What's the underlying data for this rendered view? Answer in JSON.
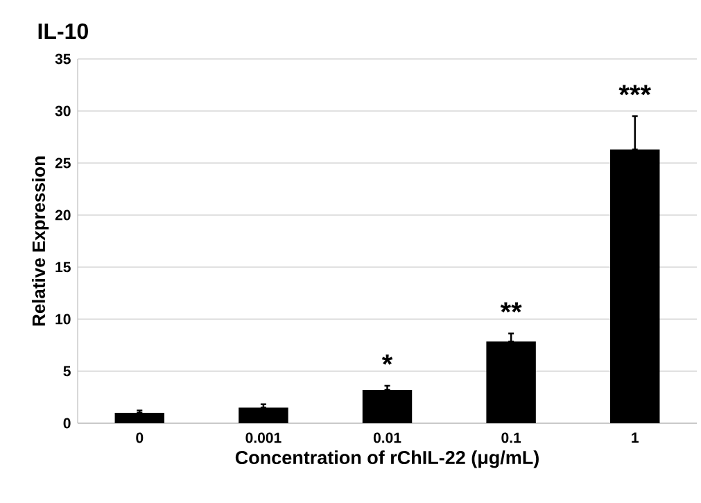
{
  "chart_data": {
    "type": "bar",
    "title": "IL-10",
    "xlabel": "Concentration of rChIL-22 (μg/mL)",
    "ylabel": "Relative Expression",
    "categories": [
      "0",
      "0.001",
      "0.01",
      "0.1",
      "1"
    ],
    "values": [
      1.0,
      1.5,
      3.2,
      7.85,
      26.3
    ],
    "errors": [
      [
        1.0,
        1.22
      ],
      [
        1.5,
        1.82
      ],
      [
        3.2,
        3.6
      ],
      [
        7.85,
        8.62
      ],
      [
        26.3,
        29.5
      ]
    ],
    "color": "#000000",
    "ylim": [
      0,
      35
    ],
    "yticks": [
      0,
      5,
      10,
      15,
      20,
      25,
      30,
      35
    ],
    "grid": "y",
    "annotations": [
      "*",
      "**",
      "***"
    ]
  }
}
